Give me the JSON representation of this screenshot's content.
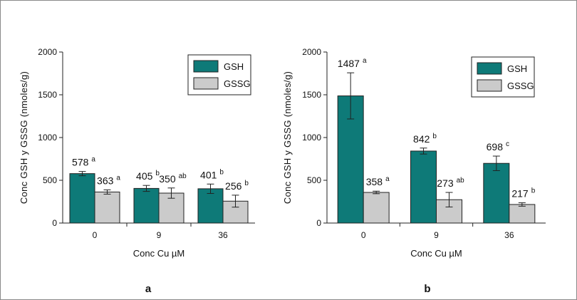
{
  "colors": {
    "gsh": "#0e7a78",
    "gssg": "#cbcbcb",
    "stroke": "#222222"
  },
  "chart_data": [
    {
      "type": "bar",
      "panel_label": "a",
      "categories": [
        "0",
        "9",
        "36"
      ],
      "xlabel": "Conc Cu µM",
      "ylabel": "Conc GSH y GSSG (nmoles/g)",
      "ylim": [
        0,
        2000
      ],
      "yticks": [
        0,
        500,
        1000,
        1500,
        2000
      ],
      "legend_position": "top-right",
      "series": [
        {
          "name": "GSH",
          "color_key": "gsh",
          "values": [
            578,
            405,
            401
          ],
          "errors": [
            25,
            35,
            55
          ],
          "letters": [
            "a",
            "b",
            "b"
          ]
        },
        {
          "name": "GSSG",
          "color_key": "gssg",
          "values": [
            363,
            350,
            256
          ],
          "errors": [
            25,
            60,
            70
          ],
          "letters": [
            "a",
            "ab",
            "b"
          ]
        }
      ]
    },
    {
      "type": "bar",
      "panel_label": "b",
      "categories": [
        "0",
        "9",
        "36"
      ],
      "xlabel": "Conc Cu µM",
      "ylabel": "Conc GSH y GSSG (nmoles/g)",
      "ylim": [
        0,
        2000
      ],
      "yticks": [
        0,
        500,
        1000,
        1500,
        2000
      ],
      "legend_position": "top-right",
      "series": [
        {
          "name": "GSH",
          "color_key": "gsh",
          "values": [
            1487,
            842,
            698
          ],
          "errors": [
            270,
            35,
            85
          ],
          "letters": [
            "a",
            "b",
            "c"
          ]
        },
        {
          "name": "GSSG",
          "color_key": "gssg",
          "values": [
            358,
            273,
            217
          ],
          "errors": [
            15,
            85,
            20
          ],
          "letters": [
            "a",
            "ab",
            "b"
          ]
        }
      ]
    }
  ]
}
